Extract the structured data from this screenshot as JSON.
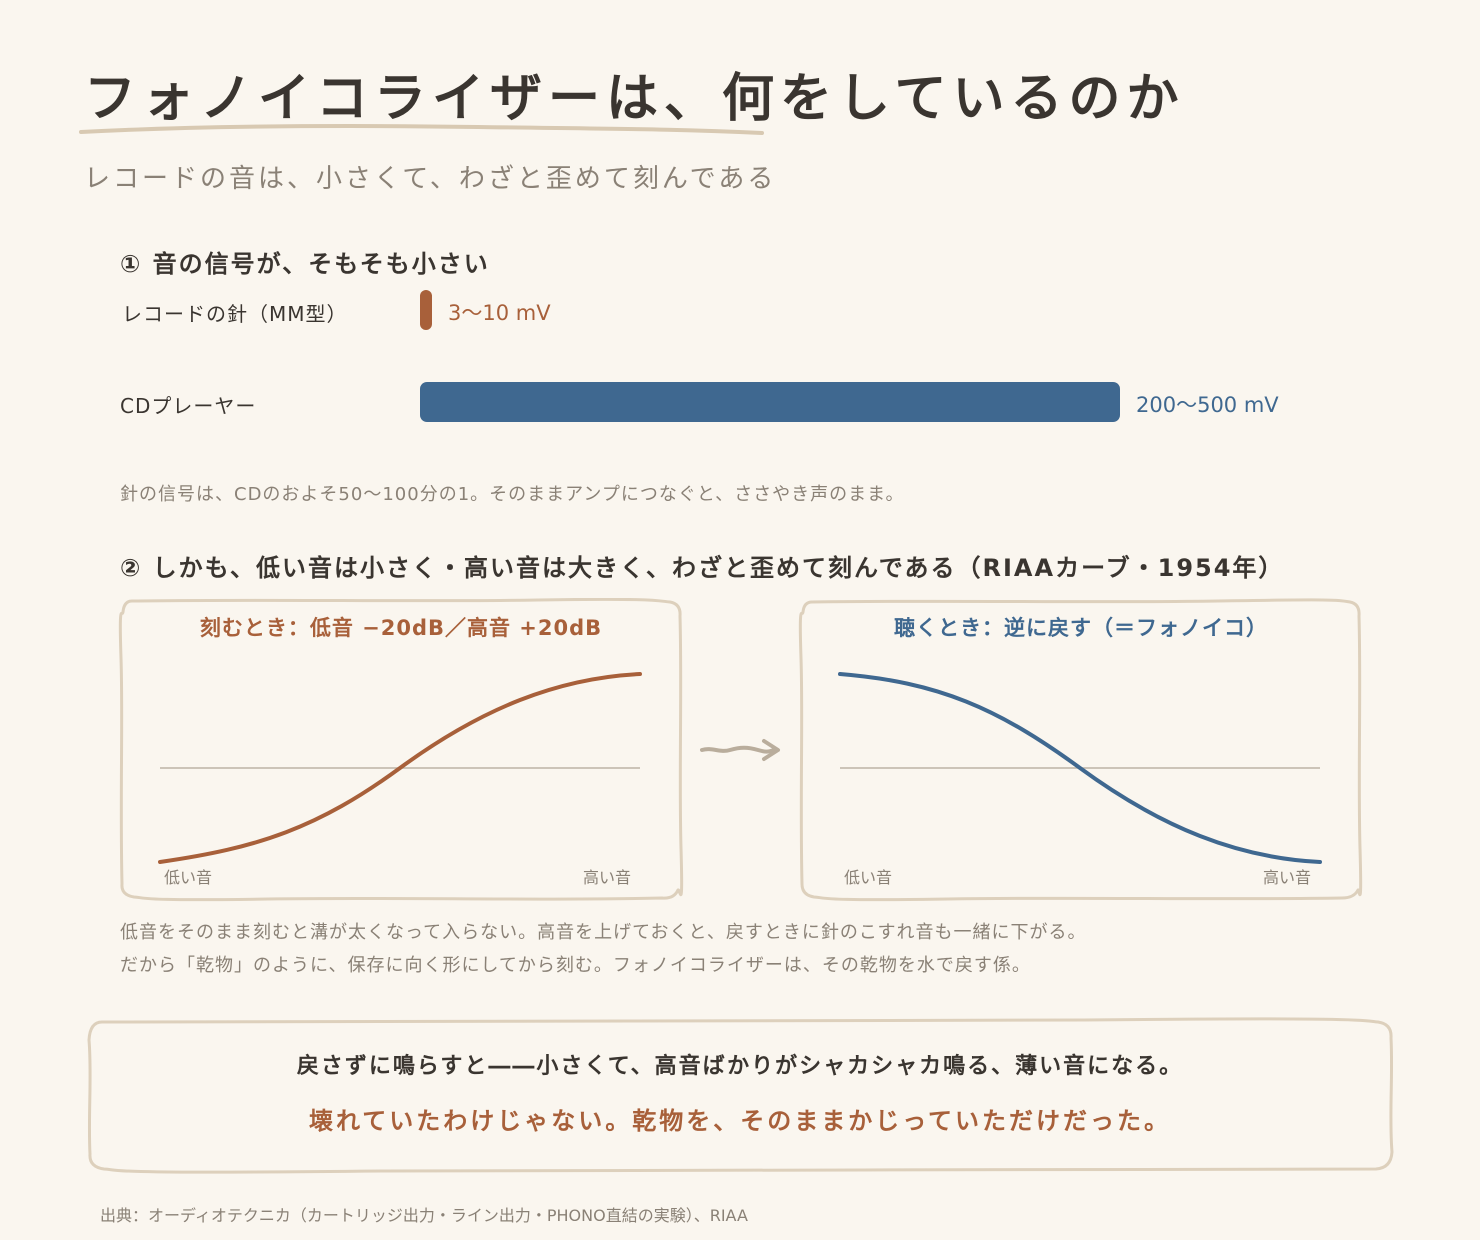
{
  "title": "フォノイコライザーは、何をしているのか",
  "subtitle": "レコードの音は、小さくて、わざと歪めて刻んである",
  "section1": {
    "heading": "① 音の信号が、そもそも小さい",
    "rows": [
      {
        "label": "レコードの針（MM型）",
        "value_text": "3〜10 mV",
        "color": "#a8603a"
      },
      {
        "label": "CDプレーヤー",
        "value_text": "200〜500 mV",
        "color": "#3f6890"
      }
    ],
    "note": "針の信号は、CDのおよそ50〜100分の1。そのままアンプにつなぐと、ささやき声のまま。"
  },
  "section2": {
    "heading": "② しかも、低い音は小さく・高い音は大きく、わざと歪めて刻んである（RIAAカーブ・1954年）",
    "panel_left": {
      "title": "刻むとき：低音 −20dB／高音 +20dB",
      "low_label": "低い音",
      "high_label": "高い音",
      "color": "#a8603a",
      "curve": "rising"
    },
    "panel_right": {
      "title": "聴くとき：逆に戻す（＝フォノイコ）",
      "low_label": "低い音",
      "high_label": "高い音",
      "color": "#3f6890",
      "curve": "falling"
    },
    "note_lines": [
      "低音をそのまま刻むと溝が太くなって入らない。高音を上げておくと、戻すときに針のこすれ音も一緒に下がる。",
      "だから「乾物」のように、保存に向く形にしてから刻む。フォノイコライザーは、その乾物を水で戻す係。"
    ]
  },
  "conclusion": {
    "line1": "戻さずに鳴らすと――小さくて、高音ばかりがシャカシャカ鳴る、薄い音になる。",
    "line2": "壊れていたわけじゃない。乾物を、そのままかじっていただけだった。",
    "line2_color": "#a8603a"
  },
  "source": "出典：オーディオテクニカ（カートリッジ出力・ライン出力・PHONO直結の実験）、RIAA",
  "colors": {
    "background": "#faf6ef",
    "border": "#ddd0bc",
    "accent_brown": "#a8603a",
    "accent_blue": "#3f6890",
    "muted_text": "#8a8176"
  }
}
